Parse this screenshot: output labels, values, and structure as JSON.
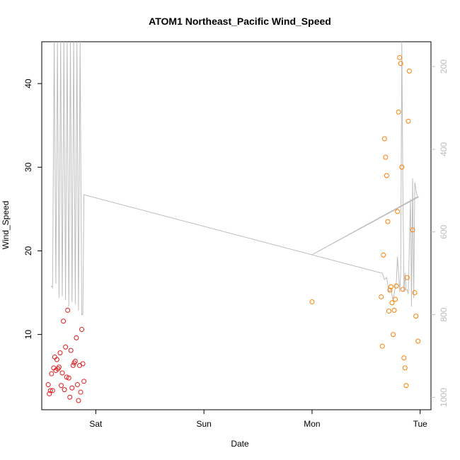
{
  "chart_data": {
    "type": "scatter",
    "title": "ATOM1 Northeast_Pacific Wind_Speed",
    "xlabel": "Date",
    "ylabel": "Wind_Speed",
    "x_ticks": [
      {
        "value": 1.0,
        "label": "Sat"
      },
      {
        "value": 2.0,
        "label": "Sun"
      },
      {
        "value": 3.0,
        "label": "Mon"
      },
      {
        "value": 4.0,
        "label": "Tue"
      }
    ],
    "xlim": [
      0.5,
      4.1
    ],
    "ylim": [
      1,
      45
    ],
    "y_ticks": [
      10,
      20,
      30,
      40
    ],
    "secondary_axis": {
      "side": "right",
      "reversed": true,
      "lim": [
        1030,
        140
      ],
      "ticks": [
        200,
        400,
        600,
        800,
        1000
      ],
      "color": "#bdbdbd"
    },
    "grid": false,
    "series": [
      {
        "color": "#e41a1c",
        "points": [
          [
            0.56,
            4.0
          ],
          [
            0.57,
            2.9
          ],
          [
            0.58,
            3.3
          ],
          [
            0.59,
            5.3
          ],
          [
            0.6,
            3.3
          ],
          [
            0.61,
            6.0
          ],
          [
            0.62,
            7.3
          ],
          [
            0.63,
            5.7
          ],
          [
            0.64,
            7.0
          ],
          [
            0.65,
            5.9
          ],
          [
            0.66,
            6.1
          ],
          [
            0.67,
            7.8
          ],
          [
            0.68,
            3.9
          ],
          [
            0.69,
            5.4
          ],
          [
            0.7,
            11.6
          ],
          [
            0.71,
            3.4
          ],
          [
            0.72,
            8.5
          ],
          [
            0.73,
            4.9
          ],
          [
            0.74,
            12.9
          ],
          [
            0.75,
            4.8
          ],
          [
            0.76,
            2.5
          ],
          [
            0.77,
            8.1
          ],
          [
            0.78,
            3.6
          ],
          [
            0.79,
            6.3
          ],
          [
            0.8,
            6.6
          ],
          [
            0.81,
            6.8
          ],
          [
            0.82,
            9.6
          ],
          [
            0.83,
            4.0
          ],
          [
            0.84,
            2.1
          ],
          [
            0.85,
            6.3
          ],
          [
            0.86,
            3.1
          ],
          [
            0.87,
            10.6
          ],
          [
            0.88,
            6.5
          ],
          [
            0.89,
            4.4
          ]
        ]
      },
      {
        "color": "#ff7f00",
        "points": [
          [
            3.0,
            13.9
          ],
          [
            3.64,
            14.5
          ],
          [
            3.65,
            8.6
          ],
          [
            3.66,
            19.5
          ],
          [
            3.67,
            33.4
          ],
          [
            3.68,
            31.2
          ],
          [
            3.69,
            29.0
          ],
          [
            3.7,
            23.5
          ],
          [
            3.71,
            12.8
          ],
          [
            3.72,
            15.3
          ],
          [
            3.73,
            15.7
          ],
          [
            3.74,
            13.8
          ],
          [
            3.75,
            10.0
          ],
          [
            3.76,
            12.9
          ],
          [
            3.77,
            14.2
          ],
          [
            3.78,
            15.8
          ],
          [
            3.79,
            24.7
          ],
          [
            3.8,
            36.6
          ],
          [
            3.81,
            43.1
          ],
          [
            3.82,
            42.4
          ],
          [
            3.83,
            30.0
          ],
          [
            3.84,
            15.4
          ],
          [
            3.85,
            7.2
          ],
          [
            3.86,
            6.0
          ],
          [
            3.87,
            3.9
          ],
          [
            3.88,
            16.8
          ],
          [
            3.89,
            35.5
          ],
          [
            3.9,
            41.5
          ],
          [
            3.93,
            22.5
          ],
          [
            3.95,
            15.0
          ],
          [
            3.96,
            12.2
          ],
          [
            3.98,
            9.2
          ]
        ]
      },
      {
        "color": "#bdbdbd",
        "axis": "right",
        "line": true,
        "points": [
          [
            0.585,
            730
          ],
          [
            0.6,
            735
          ],
          [
            0.615,
            80
          ],
          [
            0.63,
            725
          ],
          [
            0.645,
            80
          ],
          [
            0.66,
            760
          ],
          [
            0.675,
            80
          ],
          [
            0.69,
            755
          ],
          [
            0.705,
            80
          ],
          [
            0.72,
            765
          ],
          [
            0.735,
            80
          ],
          [
            0.75,
            780
          ],
          [
            0.765,
            80
          ],
          [
            0.78,
            770
          ],
          [
            0.795,
            80
          ],
          [
            0.81,
            775
          ],
          [
            0.825,
            80
          ],
          [
            0.84,
            790
          ],
          [
            0.855,
            80
          ],
          [
            0.87,
            800
          ],
          [
            0.88,
            800
          ],
          [
            0.89,
            510
          ],
          [
            3.65,
            700
          ],
          [
            3.67,
            715
          ],
          [
            3.69,
            710
          ],
          [
            3.71,
            745
          ],
          [
            3.73,
            740
          ],
          [
            3.75,
            765
          ],
          [
            3.77,
            735
          ],
          [
            3.78,
            720
          ],
          [
            3.79,
            660
          ],
          [
            3.8,
            700
          ],
          [
            3.81,
            745
          ],
          [
            3.82,
            700
          ],
          [
            3.83,
            110
          ],
          [
            3.84,
            500
          ],
          [
            3.85,
            745
          ],
          [
            3.86,
            700
          ],
          [
            3.87,
            740
          ],
          [
            3.88,
            740
          ],
          [
            3.89,
            750
          ],
          [
            3.91,
            520
          ],
          [
            3.92,
            780
          ],
          [
            3.93,
            470
          ],
          [
            3.94,
            760
          ],
          [
            3.95,
            480
          ],
          [
            3.965,
            505
          ],
          [
            3.975,
            515
          ],
          [
            3.0,
            655
          ],
          [
            3.99,
            515
          ]
        ]
      }
    ]
  }
}
